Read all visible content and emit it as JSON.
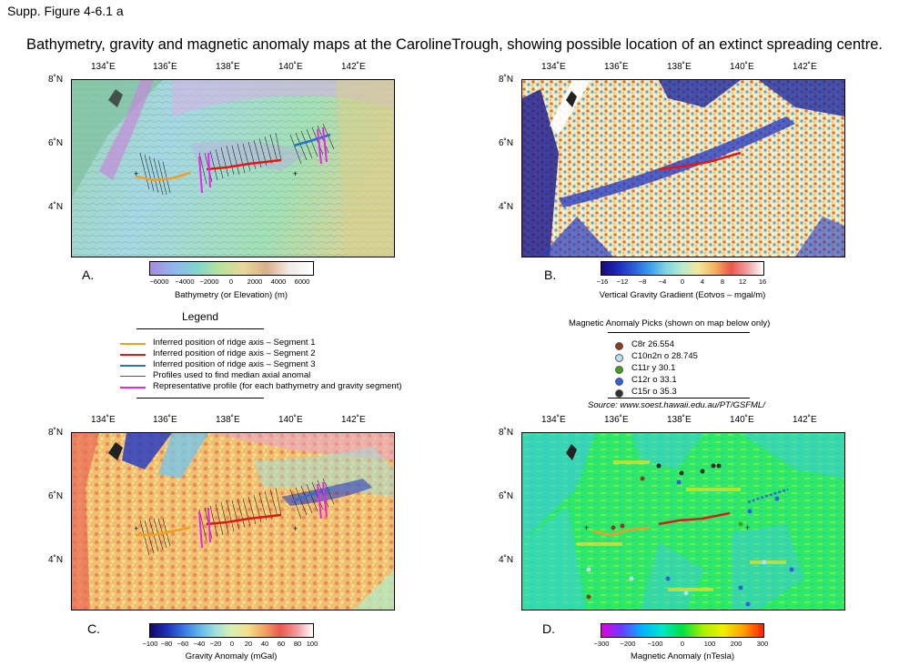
{
  "figure_label": "Supp. Figure 4-6.1 a",
  "title": "Bathymetry, gravity and magnetic anomaly maps at the CarolineTrough, showing possible location of an extinct spreading centre.",
  "axes": {
    "lon_ticks": [
      "134˚E",
      "136˚E",
      "138˚E",
      "140˚E",
      "142˚E"
    ],
    "lat_ticks": [
      "8˚N",
      "6˚N",
      "4˚N"
    ]
  },
  "panels": [
    {
      "letter": "A.",
      "colorbar_title": "Bathymetry (or Elevation) (m)",
      "colorbar_ticks": [
        "−6000",
        "−4000",
        "−2000",
        "0",
        "2000",
        "4000",
        "6000"
      ],
      "colorbar_colors": [
        "#a98bdc",
        "#8fb7ee",
        "#7fd6d0",
        "#b8e39b",
        "#e8d79a",
        "#d9b08a",
        "#f3ece8",
        "#ffffff"
      ]
    },
    {
      "letter": "B.",
      "colorbar_title": "Vertical Gravity Gradient (Eotvos – mgal/m)",
      "colorbar_ticks": [
        "−16",
        "−12",
        "−8",
        "−4",
        "0",
        "4",
        "8",
        "12",
        "16"
      ],
      "colorbar_colors": [
        "#1a0a7a",
        "#1d2ab8",
        "#2a5fd8",
        "#3f9ee8",
        "#7fd6e0",
        "#b9ecd0",
        "#f4e79a",
        "#f2b35f",
        "#e8584a",
        "#f0a0a0",
        "#ffffff"
      ]
    },
    {
      "letter": "C.",
      "colorbar_title": "Gravity Anomaly (mGal)",
      "colorbar_ticks": [
        "−100",
        "−80",
        "−60",
        "−40",
        "−20",
        "0",
        "20",
        "40",
        "60",
        "80",
        "100"
      ],
      "colorbar_colors": [
        "#13096a",
        "#1f2fb5",
        "#3574e0",
        "#5fb3ea",
        "#9fe0dc",
        "#d8f0b0",
        "#f5df8a",
        "#f2a562",
        "#e85a4c",
        "#f29a9a",
        "#ffffff"
      ]
    },
    {
      "letter": "D.",
      "colorbar_title": "Magnetic Anomaly (nTesla)",
      "colorbar_ticks": [
        "−300",
        "−200",
        "−100",
        "0",
        "100",
        "200",
        "300"
      ],
      "colorbar_colors": [
        "#e000e0",
        "#6a3cff",
        "#00b4ff",
        "#00e8c8",
        "#00e040",
        "#a8f000",
        "#f0f000",
        "#ffa000",
        "#ff2000"
      ]
    }
  ],
  "legend": {
    "title": "Legend",
    "items": [
      {
        "label": "Inferred position of ridge axis – Segment 1",
        "color": "#f0a020"
      },
      {
        "label": "Inferred position of ridge axis – Segment 2",
        "color": "#e01818"
      },
      {
        "label": "Inferred position of ridge axis – Segment 3",
        "color": "#2a70d0"
      },
      {
        "label": "Profiles used to find median axial anomal",
        "color": "#555555"
      },
      {
        "label": "Representative profile (for each bathymetry and gravity segment)",
        "color": "#f020f0"
      }
    ]
  },
  "magnetic_picks": {
    "title": "Magnetic Anomaly Picks (shown on map below only)",
    "items": [
      {
        "label": "C8r 26.554",
        "color": "#8a3c20"
      },
      {
        "label": "C10n2n o 28.745",
        "color": "#b8e0f0"
      },
      {
        "label": "C11r y 30.1",
        "color": "#40a020"
      },
      {
        "label": "C12r o 33.1",
        "color": "#3060e0"
      },
      {
        "label": "C15r o 35.3",
        "color": "#303030"
      }
    ],
    "source": "Source: www.soest.hawaii.edu.au/PT/GSFML/"
  }
}
